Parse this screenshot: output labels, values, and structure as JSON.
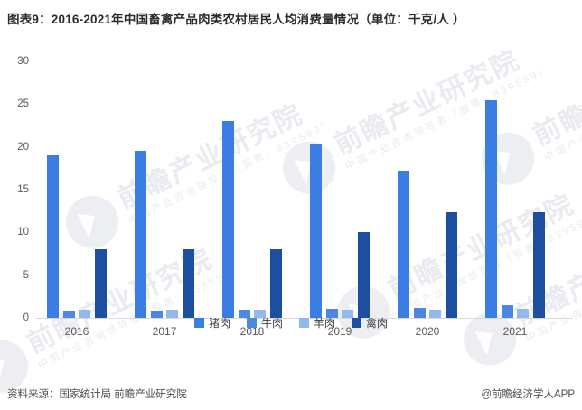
{
  "title": "图表9：2016-2021年中国畜禽产品肉类农村居民人均消费量情况（单位：千克/人 ）",
  "chart_data": {
    "type": "bar",
    "categories": [
      "2016",
      "2017",
      "2018",
      "2019",
      "2020",
      "2021"
    ],
    "series": [
      {
        "key": "pork",
        "name": "猪肉",
        "color": "#3a7ee3",
        "values": [
          19.0,
          19.5,
          23.0,
          20.3,
          17.2,
          25.5
        ]
      },
      {
        "key": "beef",
        "name": "牛肉",
        "color": "#4c87e0",
        "values": [
          0.8,
          0.8,
          1.0,
          1.1,
          1.2,
          1.5
        ]
      },
      {
        "key": "mutton",
        "name": "羊肉",
        "color": "#93b8ec",
        "values": [
          1.0,
          0.9,
          0.9,
          1.0,
          0.9,
          1.1
        ]
      },
      {
        "key": "poultry",
        "name": "禽肉",
        "color": "#1d4fa0",
        "values": [
          8.0,
          8.0,
          8.0,
          10.0,
          12.4,
          12.4
        ]
      }
    ],
    "ylim": [
      0,
      30
    ],
    "yticks": [
      0,
      5,
      10,
      15,
      20,
      25,
      30
    ],
    "grid": false,
    "legend_position": "bottom",
    "axis_color": "#d9d9d9"
  },
  "footer": {
    "source": "资料来源：国家统计局 前瞻产业研究院",
    "credit": "@前瞻经济学人APP"
  },
  "watermark": {
    "text": "前瞻产业研究院",
    "subtext": "中国产业咨询领导者（股票：839599）"
  }
}
